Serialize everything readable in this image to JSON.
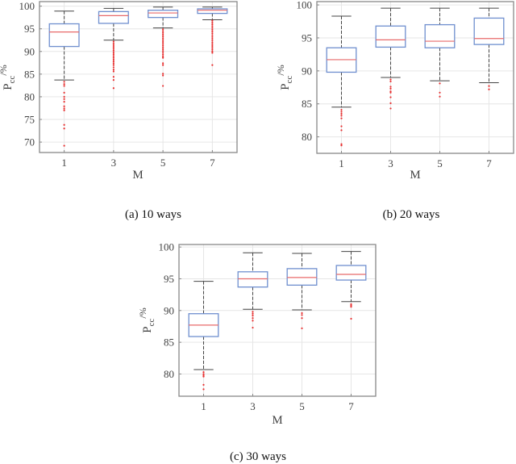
{
  "chart_data": [
    {
      "type": "box",
      "caption": "(a)  10 ways",
      "xlabel": "M",
      "ylabel_main": "P",
      "ylabel_sub": "cc",
      "ylabel_suffix": "/%",
      "categories": [
        "1",
        "3",
        "5",
        "7"
      ],
      "ylim": [
        67.7,
        101
      ],
      "yticks": [
        70,
        75,
        80,
        85,
        90,
        95,
        100
      ],
      "grid": true,
      "boxes": [
        {
          "whisker_low": 83.7,
          "q1": 91.1,
          "median": 94.3,
          "q3": 96.1,
          "whisker_high": 98.9,
          "outliers": [
            83.3,
            82.8,
            82.4,
            80.9,
            80.0,
            79.5,
            78.9,
            77.9,
            77.4,
            77.0,
            73.8,
            73.0,
            69.2
          ]
        },
        {
          "whisker_low": 92.5,
          "q1": 96.2,
          "median": 97.9,
          "q3": 98.8,
          "whisker_high": 99.5,
          "outliers": [
            92.2,
            91.8,
            91.4,
            91.0,
            90.6,
            90.2,
            89.8,
            89.4,
            89.0,
            88.6,
            88.2,
            87.8,
            87.4,
            87.0,
            86.5,
            86.0,
            85.6,
            84.4,
            83.7,
            81.9
          ]
        },
        {
          "whisker_low": 95.2,
          "q1": 97.5,
          "median": 98.5,
          "q3": 99.1,
          "whisker_high": 99.8,
          "outliers": [
            94.9,
            94.5,
            94.1,
            93.7,
            93.3,
            92.9,
            92.5,
            92.1,
            91.7,
            91.3,
            90.9,
            90.5,
            90.1,
            89.7,
            89.3,
            88.9,
            88.6,
            87.4,
            87.0,
            85.1,
            84.7,
            82.4
          ]
        },
        {
          "whisker_low": 97.0,
          "q1": 98.4,
          "median": 99.1,
          "q3": 99.4,
          "whisker_high": 99.8,
          "outliers": [
            96.8,
            96.4,
            96.0,
            95.6,
            95.2,
            94.8,
            94.4,
            94.0,
            93.6,
            93.2,
            92.8,
            92.4,
            92.0,
            91.6,
            91.2,
            90.8,
            90.4,
            90.0,
            89.7,
            87.0
          ]
        }
      ]
    },
    {
      "type": "box",
      "caption": "(b)  20 ways",
      "xlabel": "M",
      "ylabel_main": "P",
      "ylabel_sub": "cc",
      "ylabel_suffix": "/%",
      "categories": [
        "1",
        "3",
        "5",
        "7"
      ],
      "ylim": [
        77.5,
        100.5
      ],
      "yticks": [
        80,
        85,
        90,
        95,
        100
      ],
      "grid": true,
      "boxes": [
        {
          "whisker_low": 84.5,
          "q1": 89.8,
          "median": 91.7,
          "q3": 93.5,
          "whisker_high": 98.3,
          "outliers": [
            84.1,
            83.8,
            83.5,
            83.2,
            82.8,
            81.6,
            81.0,
            78.9,
            78.7
          ]
        },
        {
          "whisker_low": 89.0,
          "q1": 93.6,
          "median": 94.7,
          "q3": 96.8,
          "whisker_high": 99.5,
          "outliers": [
            88.7,
            88.4,
            87.6,
            87.3,
            86.9,
            86.7,
            86.0,
            85.1,
            84.3
          ]
        },
        {
          "whisker_low": 88.5,
          "q1": 93.5,
          "median": 94.5,
          "q3": 97.0,
          "whisker_high": 99.5,
          "outliers": [
            88.1,
            86.7,
            86.1
          ]
        },
        {
          "whisker_low": 88.2,
          "q1": 94.0,
          "median": 94.9,
          "q3": 98.0,
          "whisker_high": 99.5,
          "outliers": [
            87.7,
            87.2
          ]
        }
      ]
    },
    {
      "type": "box",
      "caption": "(c)  30 ways",
      "xlabel": "M",
      "ylabel_main": "P",
      "ylabel_sub": "cc",
      "ylabel_suffix": "/%",
      "categories": [
        "1",
        "3",
        "5",
        "7"
      ],
      "ylim": [
        76.5,
        100.4
      ],
      "yticks": [
        80,
        85,
        90,
        95,
        100
      ],
      "grid": true,
      "boxes": [
        {
          "whisker_low": 80.7,
          "q1": 85.9,
          "median": 87.7,
          "q3": 89.5,
          "whisker_high": 94.6,
          "outliers": [
            80.3,
            80.0,
            79.8,
            79.6,
            78.3,
            77.6
          ]
        },
        {
          "whisker_low": 90.2,
          "q1": 93.7,
          "median": 95.0,
          "q3": 96.1,
          "whisker_high": 99.1,
          "outliers": [
            89.8,
            89.5,
            89.2,
            88.8,
            88.4,
            87.3
          ]
        },
        {
          "whisker_low": 90.1,
          "q1": 94.0,
          "median": 95.2,
          "q3": 96.6,
          "whisker_high": 99.0,
          "outliers": [
            89.6,
            89.3,
            88.8,
            87.2
          ]
        },
        {
          "whisker_low": 91.4,
          "q1": 94.8,
          "median": 95.7,
          "q3": 97.1,
          "whisker_high": 99.3,
          "outliers": [
            91.0,
            90.8,
            90.6,
            88.7
          ]
        }
      ]
    }
  ],
  "colors": {
    "box": "#6f8fcf",
    "median": "#e86a6a",
    "whisker": "#444444",
    "outlier": "#e83030",
    "grid": "#e6e6e6",
    "axis": "#888888"
  }
}
